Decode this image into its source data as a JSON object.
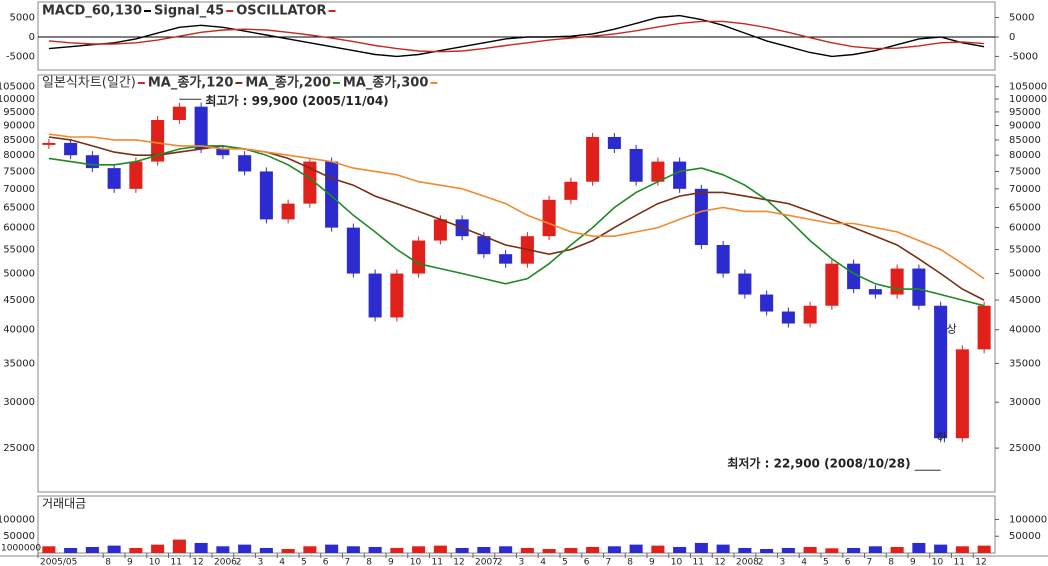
{
  "chart_data": {
    "type": "stock",
    "categories": [
      "2005/05",
      null,
      null,
      "8",
      "9",
      "10",
      "11",
      "12",
      "2006",
      "2",
      "3",
      "4",
      "5",
      "6",
      "7",
      "8",
      "9",
      "10",
      "11",
      "12",
      "2007",
      "2",
      "3",
      "4",
      "5",
      "6",
      "7",
      "8",
      "9",
      "10",
      "11",
      "12",
      "2008",
      "2",
      "3",
      "4",
      "5",
      "6",
      "7",
      "8",
      "9",
      "10",
      "11",
      "12"
    ],
    "up_color": "#e0201b",
    "down_color": "#2b2bcf",
    "panels": [
      {
        "type": "line",
        "series": [
          {
            "name": "MACD_60,130",
            "color": "#000000",
            "values": [
              -3000,
              -2500,
              -2000,
              -1500,
              -500,
              1000,
              2500,
              3000,
              2500,
              1500,
              500,
              -500,
              -1500,
              -2500,
              -3500,
              -4500,
              -5000,
              -4500,
              -3500,
              -2500,
              -1500,
              -500,
              0,
              0,
              200,
              800,
              2000,
              3500,
              5000,
              5500,
              4500,
              3000,
              1000,
              -1000,
              -2500,
              -4000,
              -5000,
              -4500,
              -3500,
              -2000,
              -500,
              0,
              -1500,
              -2500
            ]
          },
          {
            "name": "Signal_45",
            "color": "#c62a1e",
            "values": [
              -1000,
              -1500,
              -1800,
              -1800,
              -1500,
              -800,
              200,
              1200,
              1800,
              2000,
              1800,
              1200,
              500,
              -300,
              -1200,
              -2200,
              -3000,
              -3600,
              -3800,
              -3600,
              -3000,
              -2200,
              -1500,
              -800,
              -300,
              200,
              800,
              1600,
              2600,
              3500,
              4000,
              4000,
              3400,
              2400,
              1200,
              -200,
              -1500,
              -2500,
              -3000,
              -2900,
              -2300,
              -1500,
              -1300,
              -1700
            ]
          }
        ],
        "oscillator_label": "OSCILLATOR",
        "oscillator_color": "#c62a1e",
        "ylim": [
          -8500,
          9000
        ],
        "yticks": [
          5000,
          0,
          -5000
        ]
      },
      {
        "type": "candlestick",
        "log_scale": true,
        "candle_name": "일본식차트(일간)",
        "close": [
          84000,
          80000,
          76000,
          70000,
          78000,
          92000,
          97000,
          82000,
          80000,
          75000,
          62000,
          66000,
          78000,
          60000,
          50000,
          42000,
          50000,
          57000,
          62000,
          58000,
          54000,
          52000,
          58000,
          67000,
          72000,
          86000,
          82000,
          72000,
          78000,
          70000,
          56000,
          50000,
          46000,
          43000,
          41000,
          44000,
          52000,
          47000,
          46000,
          51000,
          44000,
          26000,
          37000,
          44000
        ],
        "series": [
          {
            "name": "MA_종가,120",
            "color": "#7a2e12",
            "values": [
              86000,
              85000,
              83000,
              81000,
              80000,
              80000,
              81000,
              82000,
              83000,
              82000,
              81000,
              79000,
              76000,
              73000,
              71000,
              68000,
              66000,
              64000,
              62000,
              60000,
              58000,
              56000,
              55000,
              54000,
              55000,
              57000,
              60000,
              63000,
              66000,
              68000,
              69000,
              69000,
              68000,
              67000,
              66000,
              64000,
              62000,
              60000,
              58000,
              56000,
              53000,
              50000,
              47000,
              45000
            ]
          },
          {
            "name": "MA_종가,200",
            "color": "#1f8a22",
            "values": [
              79000,
              78000,
              77000,
              77000,
              78000,
              80000,
              82000,
              83000,
              83000,
              82000,
              80000,
              77000,
              73000,
              68000,
              63000,
              59000,
              55000,
              52000,
              51000,
              50000,
              49000,
              48000,
              49000,
              52000,
              56000,
              60000,
              65000,
              69000,
              72000,
              75000,
              76000,
              74000,
              71000,
              67000,
              62000,
              57000,
              53000,
              50000,
              48000,
              47000,
              47000,
              46000,
              45000,
              44000
            ]
          },
          {
            "name": "MA_종가,300",
            "color": "#f08a30",
            "values": [
              87000,
              86000,
              86000,
              85000,
              85000,
              84000,
              83000,
              83000,
              82000,
              82000,
              81000,
              80000,
              79000,
              78000,
              76000,
              75000,
              74000,
              72000,
              71000,
              70000,
              68000,
              66000,
              63000,
              61000,
              59000,
              58000,
              58000,
              59000,
              60000,
              62000,
              64000,
              65000,
              64000,
              64000,
              63000,
              62000,
              61000,
              61000,
              60000,
              59000,
              57000,
              55000,
              52000,
              49000
            ]
          }
        ],
        "high_label": {
          "label": "최고가 : 99,900 (2005/11/04)",
          "value": 99900,
          "color": "#e0201b"
        },
        "low_label": {
          "label": "최저가 : 22,900 (2008/10/28)",
          "value": 22900,
          "color": "#1a35c8"
        },
        "markers": [
          "상",
          "하"
        ],
        "ylim": [
          21000,
          110000
        ],
        "yticks": [
          25000,
          30000,
          35000,
          40000,
          45000,
          50000,
          55000,
          60000,
          65000,
          70000,
          75000,
          80000,
          85000,
          90000,
          95000,
          100000,
          105000
        ]
      },
      {
        "type": "bar",
        "name": "거래대금",
        "unit": "1000000",
        "values": [
          20000,
          15000,
          18000,
          22000,
          15000,
          25000,
          40000,
          30000,
          20000,
          25000,
          15000,
          12000,
          20000,
          25000,
          20000,
          18000,
          15000,
          20000,
          22000,
          15000,
          18000,
          20000,
          15000,
          12000,
          15000,
          18000,
          20000,
          25000,
          22000,
          18000,
          30000,
          25000,
          15000,
          12000,
          15000,
          18000,
          14000,
          15000,
          20000,
          18000,
          30000,
          25000,
          20000,
          22000
        ],
        "ylim": [
          0,
          170000
        ],
        "yticks": [
          50000,
          100000
        ]
      }
    ]
  }
}
